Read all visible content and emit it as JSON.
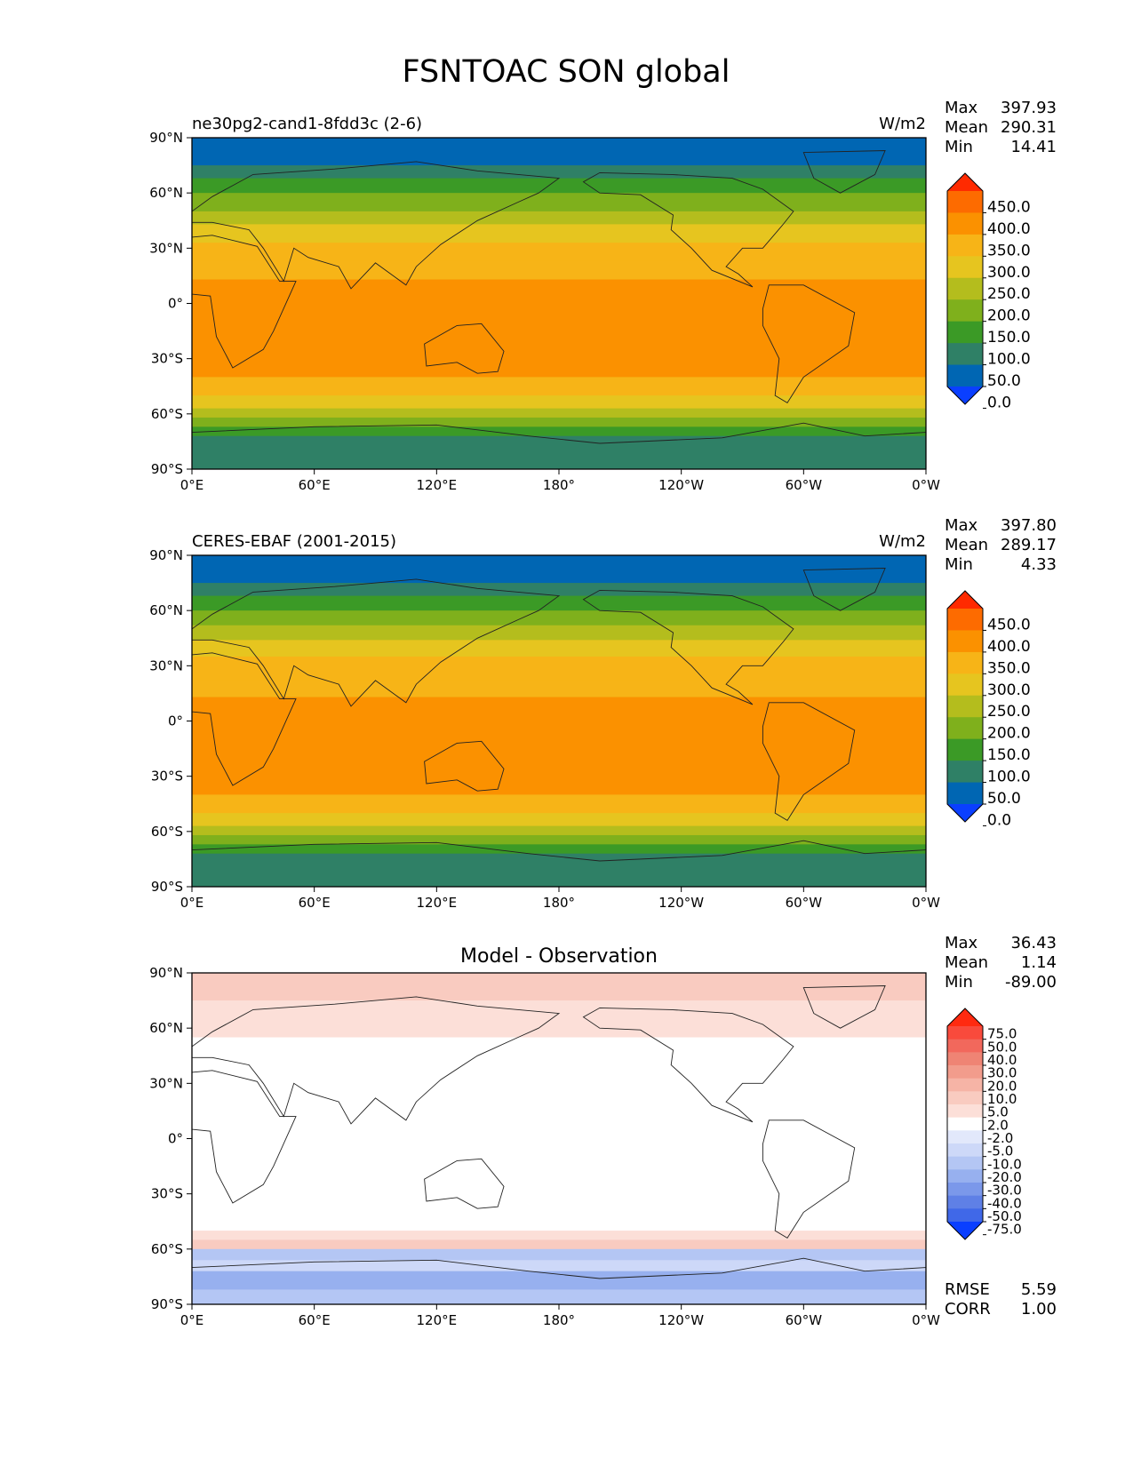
{
  "figure": {
    "title": "FSNTOAC SON global"
  },
  "chart_data": [
    {
      "type": "heatmap",
      "title": "ne30pg2-cand1-8fdd3c (2-6)",
      "units": "W/m2",
      "stats": [
        {
          "label": "Max",
          "value": "397.93"
        },
        {
          "label": "Mean",
          "value": "290.31"
        },
        {
          "label": "Min",
          "value": "14.41"
        }
      ],
      "xticks": [
        "0°E",
        "60°E",
        "120°E",
        "180°",
        "120°W",
        "60°W",
        "0°W"
      ],
      "yticks": [
        "90°N",
        "60°N",
        "30°N",
        "0°",
        "30°S",
        "60°S",
        "90°S"
      ],
      "xlim": [
        0,
        360
      ],
      "ylim": [
        -90,
        90
      ],
      "colorbar": {
        "labels": [
          "450.0",
          "400.0",
          "350.0",
          "300.0",
          "250.0",
          "200.0",
          "150.0",
          "100.0",
          "50.0",
          "0.0"
        ],
        "colors": [
          "#ff2a00",
          "#fd6b00",
          "#fb9100",
          "#f7b417",
          "#e6c51f",
          "#b4bd1d",
          "#7fb01c",
          "#3b9a26",
          "#2f8066",
          "#0066b3",
          "#0a3fff"
        ]
      },
      "lat_bands": [
        {
          "from": 90,
          "to": 75,
          "value": 25
        },
        {
          "from": 75,
          "to": 68,
          "value": 75
        },
        {
          "from": 68,
          "to": 60,
          "value": 125
        },
        {
          "from": 60,
          "to": 50,
          "value": 175
        },
        {
          "from": 50,
          "to": 43,
          "value": 225
        },
        {
          "from": 43,
          "to": 33,
          "value": 275
        },
        {
          "from": 33,
          "to": 23,
          "value": 325
        },
        {
          "from": 23,
          "to": 13,
          "value": 325
        },
        {
          "from": 13,
          "to": -40,
          "value": 375
        },
        {
          "from": -40,
          "to": -50,
          "value": 325
        },
        {
          "from": -50,
          "to": -57,
          "value": 275
        },
        {
          "from": -57,
          "to": -62,
          "value": 225
        },
        {
          "from": -62,
          "to": -67,
          "value": 175
        },
        {
          "from": -67,
          "to": -72,
          "value": 125
        },
        {
          "from": -72,
          "to": -90,
          "value": 75
        }
      ]
    },
    {
      "type": "heatmap",
      "title": "CERES-EBAF (2001-2015)",
      "units": "W/m2",
      "stats": [
        {
          "label": "Max",
          "value": "397.80"
        },
        {
          "label": "Mean",
          "value": "289.17"
        },
        {
          "label": "Min",
          "value": "4.33"
        }
      ],
      "xticks": [
        "0°E",
        "60°E",
        "120°E",
        "180°",
        "120°W",
        "60°W",
        "0°W"
      ],
      "yticks": [
        "90°N",
        "60°N",
        "30°N",
        "0°",
        "30°S",
        "60°S",
        "90°S"
      ],
      "xlim": [
        0,
        360
      ],
      "ylim": [
        -90,
        90
      ],
      "colorbar": {
        "labels": [
          "450.0",
          "400.0",
          "350.0",
          "300.0",
          "250.0",
          "200.0",
          "150.0",
          "100.0",
          "50.0",
          "0.0"
        ],
        "colors": [
          "#ff2a00",
          "#fd6b00",
          "#fb9100",
          "#f7b417",
          "#e6c51f",
          "#b4bd1d",
          "#7fb01c",
          "#3b9a26",
          "#2f8066",
          "#0066b3",
          "#0a3fff"
        ]
      },
      "lat_bands": [
        {
          "from": 90,
          "to": 75,
          "value": 25
        },
        {
          "from": 75,
          "to": 68,
          "value": 75
        },
        {
          "from": 68,
          "to": 60,
          "value": 125
        },
        {
          "from": 60,
          "to": 52,
          "value": 175
        },
        {
          "from": 52,
          "to": 44,
          "value": 225
        },
        {
          "from": 44,
          "to": 35,
          "value": 275
        },
        {
          "from": 35,
          "to": 22,
          "value": 325
        },
        {
          "from": 22,
          "to": 13,
          "value": 325
        },
        {
          "from": 13,
          "to": -40,
          "value": 375
        },
        {
          "from": -40,
          "to": -50,
          "value": 325
        },
        {
          "from": -50,
          "to": -57,
          "value": 275
        },
        {
          "from": -57,
          "to": -62,
          "value": 225
        },
        {
          "from": -62,
          "to": -67,
          "value": 175
        },
        {
          "from": -67,
          "to": -72,
          "value": 125
        },
        {
          "from": -72,
          "to": -90,
          "value": 75
        }
      ]
    },
    {
      "type": "heatmap",
      "title": "Model - Observation",
      "units": "",
      "stats": [
        {
          "label": "Max",
          "value": "36.43"
        },
        {
          "label": "Mean",
          "value": "1.14"
        },
        {
          "label": "Min",
          "value": "-89.00"
        }
      ],
      "extra_stats": [
        {
          "label": "RMSE",
          "value": "5.59"
        },
        {
          "label": "CORR",
          "value": "1.00"
        }
      ],
      "xticks": [
        "0°E",
        "60°E",
        "120°E",
        "180°",
        "120°W",
        "60°W",
        "0°W"
      ],
      "yticks": [
        "90°N",
        "60°N",
        "30°N",
        "0°",
        "30°S",
        "60°S",
        "90°S"
      ],
      "xlim": [
        0,
        360
      ],
      "ylim": [
        -90,
        90
      ],
      "colorbar": {
        "labels": [
          "75.0",
          "50.0",
          "40.0",
          "30.0",
          "20.0",
          "10.0",
          "5.0",
          "2.0",
          "-2.0",
          "-5.0",
          "-10.0",
          "-20.0",
          "-30.0",
          "-40.0",
          "-50.0",
          "-75.0"
        ],
        "colors": [
          "#ff2a10",
          "#f94a3c",
          "#f2685c",
          "#ef8474",
          "#f29c8c",
          "#f6b4a6",
          "#f9cbc0",
          "#fcdfd8",
          "#ffffff",
          "#e2e8fb",
          "#cdd8f8",
          "#b4c6f4",
          "#97b0ef",
          "#7b98ea",
          "#5f80e6",
          "#4068e8",
          "#0a3fff"
        ]
      },
      "lat_bands": [
        {
          "from": 90,
          "to": 75,
          "value": 5
        },
        {
          "from": 75,
          "to": 55,
          "value": 3
        },
        {
          "from": 55,
          "to": -50,
          "value": 0
        },
        {
          "from": -50,
          "to": -55,
          "value": 2
        },
        {
          "from": -55,
          "to": -60,
          "value": 8
        },
        {
          "from": -60,
          "to": -66,
          "value": -15
        },
        {
          "from": -66,
          "to": -72,
          "value": -8
        },
        {
          "from": -72,
          "to": -82,
          "value": -25
        },
        {
          "from": -82,
          "to": -90,
          "value": -12
        }
      ]
    }
  ]
}
